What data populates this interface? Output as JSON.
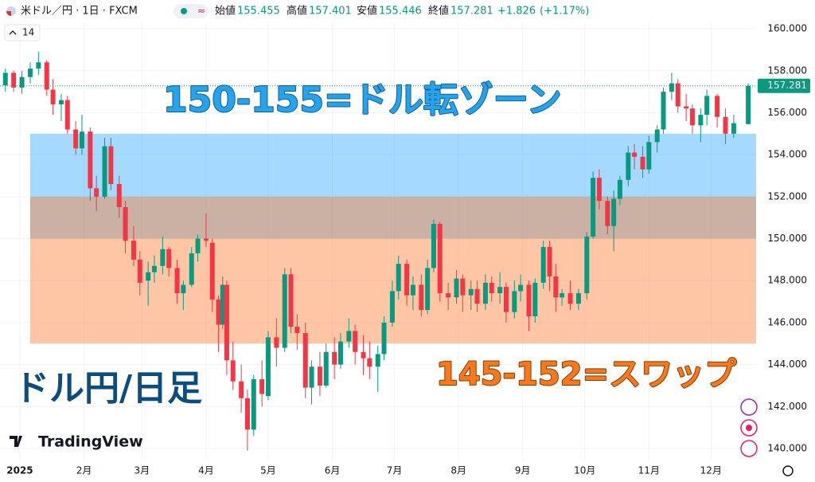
{
  "chart_data": {
    "type": "candlestick",
    "symbol": "米ドル／円 · 1日 · FXCM",
    "open_label": "始値",
    "high_label": "高値",
    "low_label": "安値",
    "close_label": "終値",
    "change": "+1.826",
    "change_pct": "(+1.17%)",
    "indicator": "14",
    "logo": "TradingView",
    "up_color": "#089981",
    "down_color": "#f23645",
    "x": [
      -6,
      -2,
      2,
      6,
      10,
      14,
      17,
      21,
      24,
      28,
      31,
      35,
      38,
      42,
      45,
      49,
      52,
      56,
      59,
      63,
      66,
      70,
      73,
      77,
      80,
      84,
      87,
      91,
      94,
      97,
      99,
      101,
      104,
      108,
      111,
      114,
      118,
      121,
      125,
      129,
      132,
      135,
      139,
      142,
      146,
      149,
      153,
      156,
      160,
      163,
      167,
      170,
      174,
      177,
      181,
      184,
      188,
      191,
      195,
      198,
      201,
      204,
      208,
      212,
      215,
      219,
      222,
      226,
      229,
      233,
      236,
      240,
      243,
      247,
      250,
      254,
      257,
      260,
      263,
      267,
      271,
      275,
      278,
      281,
      285,
      288,
      291,
      295,
      298,
      302,
      305,
      309,
      312,
      316,
      319,
      323,
      326,
      330,
      333,
      338,
      342,
      346,
      353
    ],
    "open": [
      157.3,
      157.9,
      157.2,
      157.7,
      158.1,
      158.4,
      157.1,
      156.4,
      156.6,
      155.2,
      154.3,
      155.1,
      152.4,
      152.0,
      154.4,
      152.6,
      151.5,
      149.9,
      149.0,
      148.0,
      148.4,
      148.7,
      149.5,
      148.6,
      147.4,
      147.8,
      149.3,
      150.0,
      149.8,
      147.1,
      145.9,
      147.8,
      144.2,
      143.2,
      142.4,
      140.9,
      143.3,
      142.5,
      145.3,
      144.8,
      148.3,
      145.8,
      145.5,
      142.9,
      143.9,
      143.0,
      144.6,
      144.0,
      145.1,
      145.6,
      144.6,
      144.3,
      143.9,
      144.5,
      146.0,
      147.5,
      148.8,
      147.3,
      147.8,
      146.6,
      148.6,
      150.7,
      147.4,
      147.2,
      148.1,
      147.3,
      147.6,
      146.9,
      147.9,
      147.4,
      147.7,
      146.5,
      147.5,
      147.8,
      146.3,
      147.9,
      149.6,
      148.2,
      147.2,
      147.4,
      146.9,
      147.4,
      150.1,
      152.9,
      151.8,
      150.6,
      151.9,
      152.8,
      154.1,
      153.9,
      153.3,
      154.6,
      155.2,
      157.0,
      157.4,
      156.3,
      156.2,
      155.4,
      155.9,
      156.8,
      155.8,
      155.0,
      155.455
    ],
    "high": [
      158.1,
      158.0,
      158.0,
      158.4,
      158.9,
      158.5,
      157.6,
      156.9,
      156.8,
      155.6,
      155.9,
      155.3,
      153.0,
      154.8,
      154.8,
      153.0,
      151.8,
      150.6,
      149.4,
      148.9,
      149.2,
      150.1,
      149.6,
      149.0,
      148.0,
      149.6,
      150.2,
      151.2,
      150.0,
      147.3,
      148.2,
      148.0,
      145.1,
      144.0,
      142.8,
      143.5,
      144.2,
      145.6,
      146.2,
      148.6,
      148.6,
      146.4,
      146.0,
      144.2,
      144.6,
      145.0,
      145.3,
      145.5,
      146.2,
      145.9,
      145.4,
      145.1,
      144.9,
      146.3,
      148.0,
      149.2,
      149.0,
      148.2,
      148.3,
      149.0,
      150.9,
      150.8,
      147.9,
      148.5,
      148.3,
      148.0,
      148.0,
      148.3,
      148.2,
      148.4,
      147.9,
      148.0,
      148.3,
      148.0,
      148.1,
      149.9,
      149.9,
      148.8,
      147.6,
      148.0,
      147.6,
      150.3,
      153.2,
      153.3,
      152.0,
      152.3,
      153.0,
      154.4,
      154.5,
      154.4,
      154.9,
      155.4,
      157.2,
      157.9,
      157.6,
      156.9,
      156.4,
      156.2,
      157.1,
      156.9,
      156.2,
      155.9,
      157.401
    ],
    "low": [
      157.0,
      157.0,
      156.9,
      157.4,
      157.8,
      156.8,
      155.9,
      155.6,
      155.0,
      154.0,
      154.0,
      151.8,
      151.3,
      151.9,
      152.3,
      151.0,
      149.3,
      148.7,
      147.3,
      146.8,
      147.9,
      148.3,
      148.2,
      146.9,
      146.6,
      147.7,
      148.9,
      149.6,
      146.5,
      144.6,
      145.7,
      143.5,
      142.8,
      141.7,
      139.9,
      140.6,
      142.0,
      142.3,
      143.9,
      144.6,
      145.5,
      144.7,
      142.4,
      142.1,
      142.5,
      142.9,
      143.3,
      143.8,
      144.8,
      144.0,
      143.5,
      143.3,
      142.7,
      144.2,
      145.8,
      147.1,
      146.8,
      146.6,
      146.3,
      146.4,
      148.4,
      147.0,
      146.6,
      146.9,
      146.5,
      146.6,
      146.5,
      146.6,
      147.0,
      146.9,
      146.0,
      146.2,
      147.0,
      145.6,
      146.0,
      147.6,
      147.5,
      146.5,
      146.8,
      146.6,
      146.6,
      147.1,
      150.0,
      151.4,
      150.2,
      149.4,
      151.6,
      152.5,
      153.3,
      152.9,
      153.1,
      154.1,
      155.0,
      156.6,
      156.0,
      155.6,
      155.0,
      154.6,
      155.4,
      155.3,
      154.5,
      154.8,
      155.446
    ],
    "close": [
      157.9,
      157.2,
      157.7,
      158.1,
      158.4,
      157.1,
      156.4,
      156.6,
      155.2,
      154.3,
      155.1,
      152.4,
      152.0,
      154.4,
      152.6,
      151.5,
      149.9,
      149.0,
      147.9,
      148.4,
      148.7,
      149.5,
      148.6,
      147.4,
      147.8,
      149.3,
      150.0,
      149.9,
      147.1,
      145.9,
      147.8,
      144.2,
      143.2,
      142.4,
      140.9,
      143.3,
      142.6,
      145.3,
      144.8,
      148.3,
      145.8,
      145.5,
      142.9,
      143.9,
      143.0,
      144.6,
      144.0,
      145.1,
      145.6,
      144.6,
      144.3,
      143.9,
      144.5,
      146.0,
      147.5,
      148.8,
      147.3,
      147.8,
      146.6,
      148.6,
      150.7,
      147.4,
      147.2,
      148.1,
      147.3,
      147.6,
      146.9,
      147.9,
      147.4,
      147.7,
      146.5,
      147.5,
      147.8,
      146.3,
      147.9,
      149.6,
      148.2,
      147.2,
      147.4,
      146.9,
      147.4,
      150.1,
      152.9,
      151.8,
      150.6,
      151.9,
      152.8,
      154.1,
      153.9,
      153.3,
      154.6,
      155.2,
      157.0,
      157.4,
      156.3,
      156.2,
      155.4,
      155.9,
      156.8,
      155.8,
      155.0,
      155.5,
      157.281
    ],
    "last_line_color": "#089981",
    "zones": [
      {
        "from": 150,
        "to": 155,
        "color": "rgba(30,160,250,0.40)"
      },
      {
        "from": 145,
        "to": 152,
        "color": "rgba(255,120,40,0.42)"
      }
    ],
    "annotations": [
      {
        "text": "150-155=ドル転ゾーン",
        "color": "#27a3ec"
      },
      {
        "text": "145-152=スワップ",
        "color": "#f57a1c"
      },
      {
        "text": "ドル円/日足",
        "color": "#0b4d7e"
      }
    ],
    "xlim": [
      -8.6,
      356.8
    ],
    "ylim": [
      139.43,
      161.37
    ],
    "xticks": [
      {
        "value": 1,
        "label": "2025"
      },
      {
        "value": 32,
        "label": "2月"
      },
      {
        "value": 60,
        "label": "3月"
      },
      {
        "value": 91,
        "label": "4月"
      },
      {
        "value": 121,
        "label": "5月"
      },
      {
        "value": 152,
        "label": "6月"
      },
      {
        "value": 182,
        "label": "7月"
      },
      {
        "value": 213,
        "label": "8月"
      },
      {
        "value": 244,
        "label": "9月"
      },
      {
        "value": 274,
        "label": "10月"
      },
      {
        "value": 305,
        "label": "11月"
      },
      {
        "value": 335,
        "label": "12月"
      }
    ],
    "yticks": [
      {
        "value": 140,
        "label": "140.000"
      },
      {
        "value": 142,
        "label": "142.000"
      },
      {
        "value": 144,
        "label": "144.000"
      },
      {
        "value": 146,
        "label": "146.000"
      },
      {
        "value": 148,
        "label": "148.000"
      },
      {
        "value": 150,
        "label": "150.000"
      },
      {
        "value": 152,
        "label": "152.000"
      },
      {
        "value": 154,
        "label": "154.000"
      },
      {
        "value": 156,
        "label": "156.000"
      },
      {
        "value": 158,
        "label": "158.000"
      },
      {
        "value": 160,
        "label": "160.000"
      }
    ],
    "grid": true
  }
}
